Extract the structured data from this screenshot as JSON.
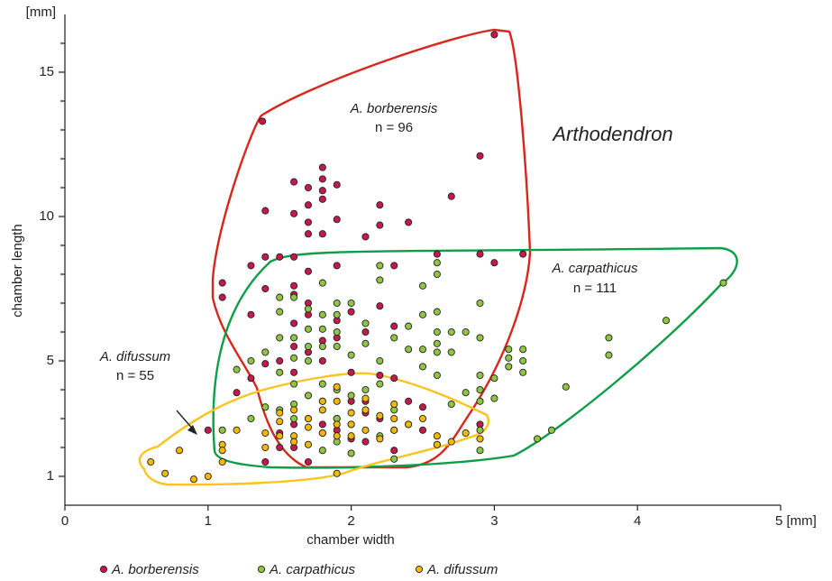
{
  "chart_data": {
    "type": "scatter",
    "annotations": [
      "Arthodendron",
      "A. borberensis",
      "n = 96",
      "A. carpathicus",
      "n = 111",
      "A. difussum",
      "n = 55"
    ],
    "x_label": "chamber width",
    "y_label": "chamber length",
    "y_unit": "[mm]",
    "xlim": [
      0,
      5
    ],
    "xticks": [
      0,
      1,
      2,
      3,
      4,
      {
        "value": 5,
        "label": "5 [mm]"
      }
    ],
    "ylim": [
      0,
      17
    ],
    "yticks": [
      1,
      5,
      10,
      15
    ],
    "minor_yticks": [
      2,
      3,
      4,
      6,
      7,
      8,
      9,
      11,
      12,
      13,
      14,
      16
    ],
    "legend": "bottom",
    "series": [
      {
        "name": "A. borberensis",
        "color": "#c8174a",
        "x": [
          1.1,
          1.1,
          1.3,
          1.3,
          1.4,
          1.4,
          1.4,
          1.38,
          1.5,
          1.6,
          1.6,
          1.6,
          1.7,
          1.7,
          1.7,
          1.7,
          1.7,
          1.8,
          1.8,
          1.8,
          1.8,
          1.8,
          1.9,
          1.9,
          1.9,
          2.1,
          2.2,
          2.2,
          2.3,
          2.4,
          2.7,
          2.9,
          3.0,
          3.0,
          3.2,
          2.9,
          2.6,
          1.6,
          1.6,
          1.7,
          1.7,
          1.6,
          1.6,
          1.5,
          1.4,
          1.3,
          1.6,
          1.7,
          1.8,
          1.8,
          1.9,
          2.0,
          2.1,
          2.0,
          2.1,
          2.1,
          2.2,
          2.3,
          2.4,
          2.5,
          2.5,
          2.6,
          1.6,
          1.6,
          1.7,
          1.8,
          1.9,
          1.9,
          2.0,
          2.1,
          2.2,
          2.3,
          1.4,
          1.5,
          2.9,
          2.2,
          2.3,
          1.9,
          1.2,
          1.5,
          2.0,
          1.8,
          2.3,
          1.0
        ],
        "values": [
          7.7,
          7.2,
          6.6,
          8.3,
          8.6,
          7.5,
          10.2,
          13.3,
          8.6,
          11.2,
          10.1,
          8.6,
          11.0,
          10.4,
          9.8,
          9.4,
          8.1,
          11.7,
          11.3,
          10.9,
          10.6,
          9.4,
          11.1,
          9.9,
          8.3,
          9.3,
          10.4,
          9.7,
          8.3,
          9.8,
          10.7,
          12.1,
          16.3,
          8.4,
          8.7,
          8.7,
          8.7,
          7.6,
          7.3,
          7.0,
          6.6,
          6.3,
          5.5,
          5.0,
          4.9,
          4.4,
          4.6,
          5.3,
          5.7,
          5.0,
          6.4,
          6.7,
          6.0,
          4.6,
          3.6,
          3.2,
          4.5,
          4.4,
          3.6,
          2.6,
          3.4,
          2.1,
          2.8,
          2.0,
          1.5,
          2.5,
          2.6,
          3.0,
          2.3,
          2.2,
          3.0,
          1.9,
          1.5,
          2.0,
          2.8,
          6.9,
          6.2,
          5.8,
          3.9,
          2.5,
          3.6,
          2.8,
          2.6,
          2.6
        ]
      },
      {
        "name": "A. carpathicus",
        "color": "#8dc63f",
        "x": [
          4.6,
          4.2,
          3.8,
          3.8,
          3.5,
          3.4,
          3.3,
          3.2,
          3.2,
          3.2,
          3.1,
          3.1,
          3.1,
          3.0,
          2.9,
          2.9,
          2.9,
          2.9,
          2.9,
          2.9,
          2.9,
          2.8,
          2.7,
          2.7,
          2.6,
          2.6,
          2.6,
          2.6,
          2.6,
          2.6,
          2.5,
          2.5,
          2.5,
          2.4,
          2.4,
          2.3,
          2.2,
          2.2,
          2.2,
          2.2,
          2.1,
          2.1,
          2.1,
          2.0,
          2.0,
          2.0,
          1.9,
          1.9,
          1.9,
          1.9,
          1.9,
          1.9,
          1.9,
          1.8,
          1.8,
          1.8,
          1.8,
          1.8,
          1.8,
          1.7,
          1.7,
          1.7,
          1.7,
          1.7,
          1.7,
          1.6,
          1.6,
          1.6,
          1.6,
          1.6,
          1.5,
          1.5,
          1.5,
          1.5,
          1.5,
          1.4,
          1.4,
          1.3,
          1.3,
          1.2,
          1.1,
          2.0,
          2.3,
          2.7,
          2.6,
          2.4,
          2.3,
          2.0,
          2.2,
          1.8,
          1.6,
          3.0,
          2.8,
          2.5
        ],
        "values": [
          7.7,
          6.4,
          5.8,
          5.2,
          4.1,
          2.6,
          2.3,
          5.4,
          5.0,
          4.6,
          5.4,
          5.1,
          4.8,
          4.4,
          4.5,
          4.0,
          3.6,
          2.6,
          1.9,
          7.0,
          5.8,
          6.0,
          6.0,
          5.3,
          6.0,
          5.6,
          5.3,
          6.7,
          8.0,
          8.4,
          5.4,
          6.6,
          7.6,
          6.2,
          5.4,
          5.8,
          7.8,
          8.3,
          5.0,
          4.2,
          6.3,
          5.6,
          4.0,
          7.0,
          5.2,
          3.8,
          7.0,
          6.6,
          6.0,
          5.5,
          4.0,
          3.0,
          2.2,
          7.7,
          6.6,
          6.1,
          5.5,
          4.2,
          3.6,
          6.8,
          6.1,
          5.5,
          5.0,
          3.8,
          3.0,
          7.2,
          5.8,
          5.1,
          4.2,
          3.5,
          7.2,
          6.7,
          5.8,
          4.6,
          3.3,
          5.3,
          3.4,
          3.0,
          5.0,
          4.7,
          2.6,
          1.8,
          1.6,
          3.5,
          4.5,
          2.8,
          3.3,
          2.8,
          2.4,
          1.9,
          3.0,
          3.7,
          3.9,
          4.8
        ]
      },
      {
        "name": "A. difussum",
        "color": "#f5b800",
        "x": [
          0.6,
          0.7,
          0.8,
          0.9,
          1.0,
          1.1,
          1.1,
          1.1,
          1.2,
          1.4,
          1.4,
          1.5,
          1.5,
          1.6,
          1.6,
          1.7,
          1.7,
          1.7,
          1.8,
          1.8,
          1.8,
          1.9,
          1.9,
          1.9,
          1.9,
          1.9,
          2.0,
          2.0,
          2.0,
          2.1,
          2.1,
          2.1,
          2.2,
          2.2,
          2.3,
          2.3,
          2.4,
          2.5,
          2.6,
          2.6,
          2.7,
          2.9,
          2.8,
          2.3,
          1.6,
          1.5
        ],
        "values": [
          1.5,
          1.1,
          1.9,
          0.9,
          1.0,
          2.1,
          1.9,
          1.5,
          2.6,
          2.0,
          2.5,
          3.2,
          2.9,
          2.4,
          3.3,
          3.0,
          2.7,
          2.1,
          3.3,
          2.5,
          3.6,
          4.1,
          3.6,
          2.8,
          2.4,
          1.1,
          3.2,
          2.8,
          2.4,
          3.7,
          3.3,
          2.6,
          3.1,
          2.3,
          3.5,
          3.0,
          2.8,
          3.0,
          2.1,
          2.4,
          2.2,
          2.3,
          2.5,
          2.6,
          2.2,
          2.4
        ]
      }
    ]
  }
}
